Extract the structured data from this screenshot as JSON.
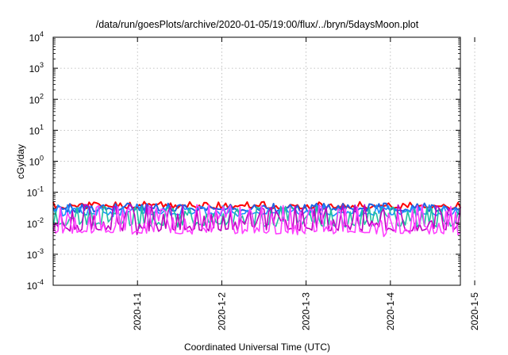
{
  "chart_data": {
    "type": "line",
    "title": "/data/run/goesPlots/archive/2020-01-05/19:00/flux/../bryn/5daysMoon.plot",
    "xlabel": "Coordinated Universal Time (UTC)",
    "ylabel": "cGy/day",
    "y_scale": "log",
    "ylim": [
      0.0001,
      10000
    ],
    "xlim": [
      0,
      4.83
    ],
    "grid": true,
    "y_ticks": [
      {
        "base": "10",
        "exp": "-4"
      },
      {
        "base": "10",
        "exp": "-3"
      },
      {
        "base": "10",
        "exp": "-2"
      },
      {
        "base": "10",
        "exp": "-1"
      },
      {
        "base": "10",
        "exp": "0"
      },
      {
        "base": "10",
        "exp": "1"
      },
      {
        "base": "10",
        "exp": "2"
      },
      {
        "base": "10",
        "exp": "3"
      },
      {
        "base": "10",
        "exp": "4"
      }
    ],
    "x_ticks": [
      {
        "label": "2020-1-1",
        "x": 1
      },
      {
        "label": "2020-1-2",
        "x": 2
      },
      {
        "label": "2020-1-3",
        "x": 3
      },
      {
        "label": "2020-1-4",
        "x": 4
      },
      {
        "label": "2020-1-5",
        "x": 5
      }
    ],
    "series": [
      {
        "color": "#ff0000",
        "baseline": 0.03,
        "peak": 0.05,
        "spread": 0.3,
        "seed": 11
      },
      {
        "color": "#2060e0",
        "baseline": 0.024,
        "peak": 0.045,
        "spread": 0.35,
        "seed": 23
      },
      {
        "color": "#1a90ff",
        "baseline": 0.018,
        "peak": 0.04,
        "spread": 0.45,
        "seed": 37
      },
      {
        "color": "#20c0a0",
        "baseline": 0.0075,
        "peak": 0.035,
        "spread": 0.8,
        "seed": 41
      },
      {
        "color": "#c000c0",
        "baseline": 0.0055,
        "peak": 0.04,
        "spread": 0.9,
        "seed": 53
      },
      {
        "color": "#ff40ff",
        "baseline": 0.0045,
        "peak": 0.04,
        "spread": 0.95,
        "seed": 67
      }
    ]
  }
}
